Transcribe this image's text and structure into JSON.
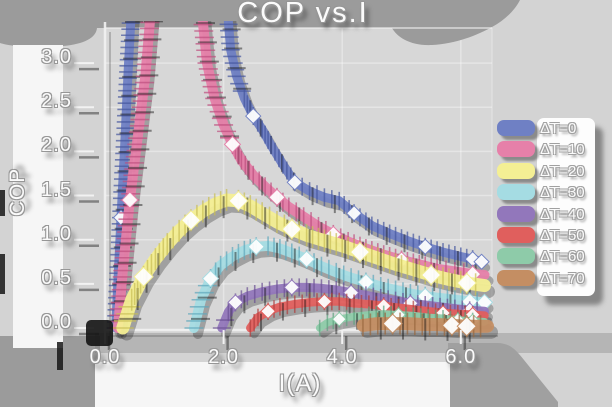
{
  "title": "COP vs.I",
  "axes": {
    "x": {
      "label": "I(A)",
      "tick_labels": [
        "0.0",
        "2.0",
        "4.0",
        "6.0"
      ],
      "tick_values": [
        0,
        2,
        4,
        6
      ],
      "range": [
        0,
        6.55
      ]
    },
    "y": {
      "label": "COP",
      "tick_labels": [
        "0.0",
        "0.5",
        "1.0",
        "1.5",
        "2.0",
        "2.5",
        "3.0"
      ],
      "tick_values": [
        0,
        0.5,
        1,
        1.5,
        2,
        2.5,
        3
      ],
      "range": [
        0,
        3.35
      ]
    }
  },
  "legend": {
    "position": "right"
  },
  "style": {
    "background": "#d3d3d3",
    "plot_background": "#d7d7d7",
    "top_band": "#9b9b9b",
    "shadow_block": "#a0a0a0",
    "white_strip": "#f6f6f6",
    "legend_background": "#fdfdfd",
    "text_color": "#fbfbfb",
    "text_outline": "#969696",
    "axis_color": "#f2f2f2",
    "grid_color": "#ffffff",
    "origin_blob": "#141414"
  },
  "chart_data": {
    "type": "line",
    "title": "COP vs.I",
    "xlabel": "I(A)",
    "ylabel": "COP",
    "xlim": [
      0,
      6.55
    ],
    "ylim": [
      0,
      3.35
    ],
    "grid": true,
    "legend_position": "right",
    "note": "error-bar bands; blue and pink peaks exceed the visible axis top (>3.35)",
    "series": [
      {
        "name": "ΔT=0",
        "color": "#6f80c4",
        "tick_color": "#46579f",
        "band_width": 9,
        "points": [
          [
            0.18,
            0
          ],
          [
            0.22,
            0.55
          ],
          [
            0.27,
            1.25
          ],
          [
            0.33,
            2.05
          ],
          [
            0.39,
            2.9
          ],
          [
            0.46,
            3.8
          ],
          [
            2.04,
            3.8
          ],
          [
            2.12,
            3.15
          ],
          [
            2.22,
            2.85
          ],
          [
            2.35,
            2.6
          ],
          [
            2.5,
            2.4
          ],
          [
            2.65,
            2.25
          ],
          [
            2.8,
            2.07
          ],
          [
            3.0,
            1.85
          ],
          [
            3.2,
            1.65
          ],
          [
            3.45,
            1.55
          ],
          [
            3.7,
            1.48
          ],
          [
            3.95,
            1.44
          ],
          [
            4.2,
            1.3
          ],
          [
            4.5,
            1.16
          ],
          [
            4.8,
            1.07
          ],
          [
            5.1,
            0.99
          ],
          [
            5.4,
            0.92
          ],
          [
            5.7,
            0.86
          ],
          [
            6.0,
            0.81
          ],
          [
            6.2,
            0.78
          ],
          [
            6.35,
            0.75
          ]
        ]
      },
      {
        "name": "ΔT=10",
        "color": "#e680a9",
        "tick_color": "#bf4f7f",
        "band_width": 10,
        "points": [
          [
            0.22,
            0
          ],
          [
            0.3,
            0.65
          ],
          [
            0.42,
            1.45
          ],
          [
            0.55,
            2.15
          ],
          [
            0.68,
            2.85
          ],
          [
            0.8,
            3.8
          ],
          [
            1.6,
            3.8
          ],
          [
            1.72,
            3.0
          ],
          [
            1.85,
            2.6
          ],
          [
            2.0,
            2.3
          ],
          [
            2.15,
            2.08
          ],
          [
            2.3,
            1.9
          ],
          [
            2.5,
            1.73
          ],
          [
            2.7,
            1.6
          ],
          [
            2.9,
            1.48
          ],
          [
            3.1,
            1.37
          ],
          [
            3.35,
            1.26
          ],
          [
            3.6,
            1.15
          ],
          [
            3.85,
            1.06
          ],
          [
            4.1,
            0.98
          ],
          [
            4.4,
            0.9
          ],
          [
            4.7,
            0.83
          ],
          [
            5.0,
            0.77
          ],
          [
            5.3,
            0.72
          ],
          [
            5.6,
            0.67
          ],
          [
            5.9,
            0.64
          ],
          [
            6.2,
            0.61
          ],
          [
            6.4,
            0.6
          ]
        ]
      },
      {
        "name": "ΔT=20",
        "color": "#f4ef94",
        "tick_color": "#c9bf55",
        "band_width": 13,
        "points": [
          [
            0.3,
            0
          ],
          [
            0.45,
            0.32
          ],
          [
            0.65,
            0.58
          ],
          [
            0.85,
            0.78
          ],
          [
            1.05,
            0.95
          ],
          [
            1.25,
            1.1
          ],
          [
            1.45,
            1.22
          ],
          [
            1.65,
            1.32
          ],
          [
            1.85,
            1.4
          ],
          [
            2.05,
            1.45
          ],
          [
            2.25,
            1.44
          ],
          [
            2.45,
            1.38
          ],
          [
            2.65,
            1.3
          ],
          [
            2.9,
            1.2
          ],
          [
            3.15,
            1.12
          ],
          [
            3.4,
            1.05
          ],
          [
            3.7,
            0.99
          ],
          [
            4.0,
            0.93
          ],
          [
            4.3,
            0.86
          ],
          [
            4.6,
            0.79
          ],
          [
            4.9,
            0.72
          ],
          [
            5.2,
            0.66
          ],
          [
            5.5,
            0.6
          ],
          [
            5.8,
            0.55
          ],
          [
            6.1,
            0.51
          ],
          [
            6.4,
            0.48
          ]
        ]
      },
      {
        "name": "ΔT=30",
        "color": "#a5dce3",
        "tick_color": "#5fa8bc",
        "band_width": 10,
        "points": [
          [
            1.5,
            0
          ],
          [
            1.62,
            0.32
          ],
          [
            1.78,
            0.56
          ],
          [
            1.95,
            0.71
          ],
          [
            2.15,
            0.81
          ],
          [
            2.35,
            0.88
          ],
          [
            2.55,
            0.92
          ],
          [
            2.75,
            0.93
          ],
          [
            2.95,
            0.9
          ],
          [
            3.15,
            0.85
          ],
          [
            3.4,
            0.78
          ],
          [
            3.65,
            0.7
          ],
          [
            3.9,
            0.63
          ],
          [
            4.15,
            0.57
          ],
          [
            4.4,
            0.52
          ],
          [
            4.65,
            0.47
          ],
          [
            4.9,
            0.43
          ],
          [
            5.15,
            0.39
          ],
          [
            5.4,
            0.36
          ],
          [
            5.65,
            0.34
          ],
          [
            5.9,
            0.32
          ],
          [
            6.15,
            0.3
          ],
          [
            6.4,
            0.29
          ]
        ]
      },
      {
        "name": "ΔT=40",
        "color": "#9277bb",
        "tick_color": "#6b5094",
        "band_width": 9,
        "points": [
          [
            1.97,
            0
          ],
          [
            2.08,
            0.18
          ],
          [
            2.2,
            0.29
          ],
          [
            2.4,
            0.36
          ],
          [
            2.65,
            0.41
          ],
          [
            2.9,
            0.44
          ],
          [
            3.15,
            0.46
          ],
          [
            3.4,
            0.46
          ],
          [
            3.65,
            0.45
          ],
          [
            3.9,
            0.43
          ],
          [
            4.15,
            0.4
          ],
          [
            4.4,
            0.37
          ],
          [
            4.65,
            0.34
          ],
          [
            4.9,
            0.31
          ],
          [
            5.15,
            0.28
          ],
          [
            5.4,
            0.26
          ],
          [
            5.65,
            0.24
          ],
          [
            5.9,
            0.22
          ],
          [
            6.15,
            0.2
          ],
          [
            6.4,
            0.19
          ]
        ]
      },
      {
        "name": "ΔT=50",
        "color": "#e05f5d",
        "tick_color": "#b03f3f",
        "band_width": 8.5,
        "points": [
          [
            2.45,
            0
          ],
          [
            2.58,
            0.12
          ],
          [
            2.75,
            0.19
          ],
          [
            2.95,
            0.24
          ],
          [
            3.2,
            0.27
          ],
          [
            3.45,
            0.29
          ],
          [
            3.7,
            0.3
          ],
          [
            3.95,
            0.3
          ],
          [
            4.2,
            0.28
          ],
          [
            4.45,
            0.27
          ],
          [
            4.7,
            0.25
          ],
          [
            4.95,
            0.23
          ],
          [
            5.2,
            0.21
          ],
          [
            5.45,
            0.19
          ],
          [
            5.7,
            0.17
          ],
          [
            5.95,
            0.16
          ],
          [
            6.2,
            0.15
          ],
          [
            6.4,
            0.14
          ]
        ]
      },
      {
        "name": "ΔT=60",
        "color": "#8ecba9",
        "tick_color": "#5ea37f",
        "band_width": 7.5,
        "points": [
          [
            3.62,
            0
          ],
          [
            3.75,
            0.06
          ],
          [
            3.95,
            0.1
          ],
          [
            4.2,
            0.13
          ],
          [
            4.45,
            0.15
          ],
          [
            4.7,
            0.16
          ],
          [
            4.95,
            0.15
          ],
          [
            5.2,
            0.14
          ],
          [
            5.45,
            0.12
          ],
          [
            5.7,
            0.11
          ],
          [
            5.95,
            0.09
          ],
          [
            6.2,
            0.08
          ],
          [
            6.4,
            0.07
          ]
        ]
      },
      {
        "name": "ΔT=70",
        "color": "#c48e63",
        "tick_color": "#99683f",
        "band_width": 13,
        "points": [
          [
            4.35,
            0.03
          ],
          [
            4.6,
            0.05
          ],
          [
            4.85,
            0.05
          ],
          [
            5.1,
            0.05
          ],
          [
            5.35,
            0.04
          ],
          [
            5.6,
            0.04
          ],
          [
            5.85,
            0.03
          ],
          [
            6.1,
            0.02
          ],
          [
            6.45,
            0.02
          ]
        ]
      }
    ]
  }
}
